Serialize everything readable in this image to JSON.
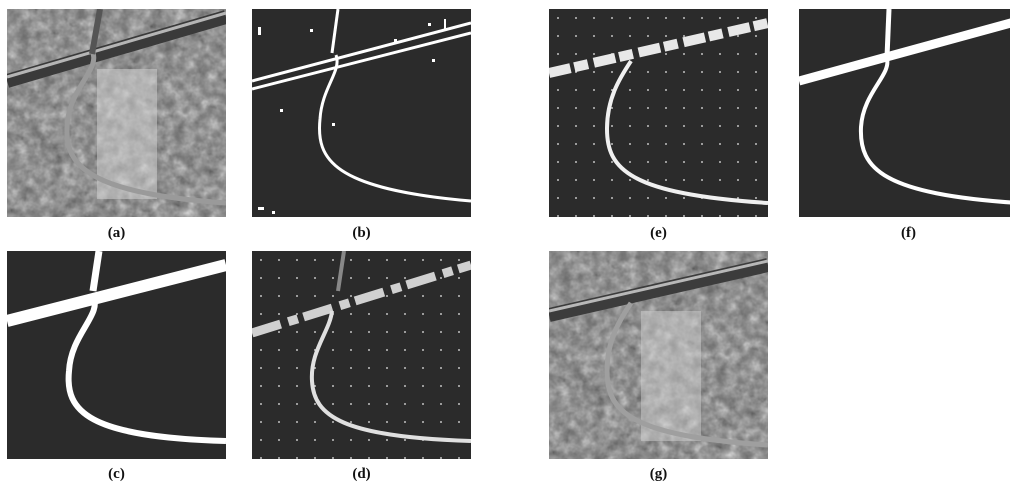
{
  "labels": {
    "a": "(a)",
    "b": "(b)",
    "c": "(c)",
    "d": "(d)",
    "e": "(e)",
    "f": "(f)",
    "g": "(g)"
  },
  "colors": {
    "mask_background": "#2b2b2b",
    "road": "#ffffff",
    "page": "#ffffff"
  }
}
